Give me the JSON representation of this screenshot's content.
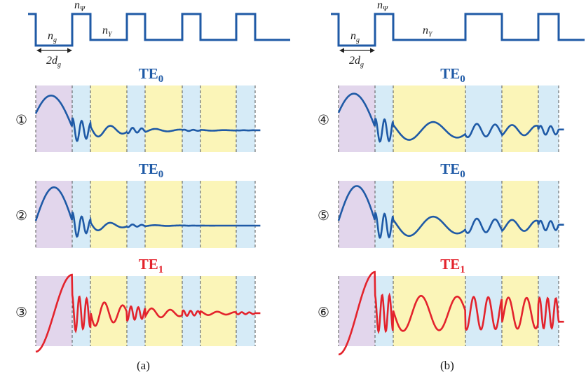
{
  "colors": {
    "profile": "#1f5aa6",
    "te0": "#1f5aa6",
    "te1": "#e3232c",
    "guide": "#e2d6ec",
    "layer_psi": "#d6ebf7",
    "layer_upsilon": "#fbf5b8",
    "boundary": "#555555"
  },
  "profile_labels": {
    "n_g": "n_g",
    "n_psi": "n_Ψ",
    "n_upsilon": "n_Υ",
    "width": "2d_g"
  },
  "panel_labels": [
    "(a)",
    "(b)"
  ],
  "columns": [
    {
      "panel": "(a)",
      "layer_sequence": [
        "g",
        "Ψ",
        "Υ",
        "Ψ",
        "Υ",
        "Ψ",
        "Υ",
        "Ψ"
      ],
      "plots": [
        {
          "index": "①",
          "mode_base": "TE",
          "mode_sub": "0",
          "color_key": "te0",
          "field_profile": "mode-profile-1"
        },
        {
          "index": "②",
          "mode_base": "TE",
          "mode_sub": "0",
          "color_key": "te0",
          "field_profile": "mode-profile-2"
        },
        {
          "index": "③",
          "mode_base": "TE",
          "mode_sub": "1",
          "color_key": "te1",
          "field_profile": "mode-profile-3"
        }
      ]
    },
    {
      "panel": "(b)",
      "layer_sequence": [
        "g",
        "Ψ",
        "Υ",
        "Ψ",
        "Υ",
        "Ψ"
      ],
      "plots": [
        {
          "index": "④",
          "mode_base": "TE",
          "mode_sub": "0",
          "color_key": "te0",
          "field_profile": "mode-profile-4"
        },
        {
          "index": "⑤",
          "mode_base": "TE",
          "mode_sub": "0",
          "color_key": "te0",
          "field_profile": "mode-profile-5"
        },
        {
          "index": "⑥",
          "mode_base": "TE",
          "mode_sub": "1",
          "color_key": "te1",
          "field_profile": "mode-profile-6"
        }
      ]
    }
  ]
}
